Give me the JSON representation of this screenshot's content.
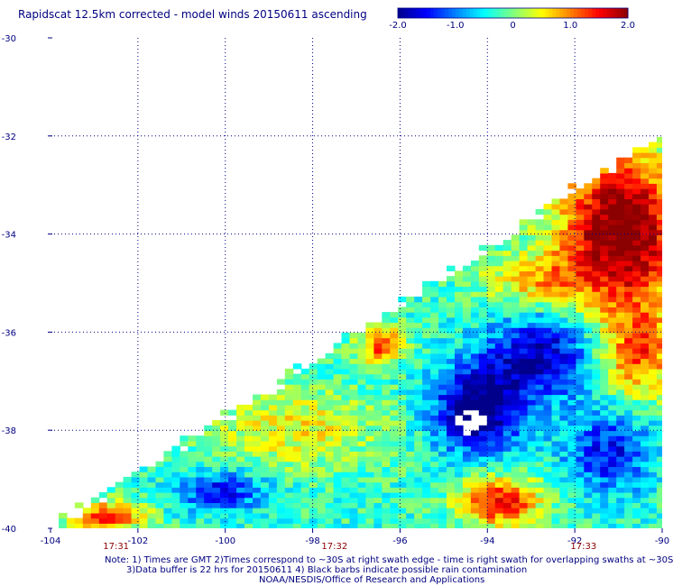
{
  "title": "Rapidscat 12.5km corrected - model winds 20150611 ascending",
  "colorbar": {
    "min": -2.0,
    "max": 2.0,
    "ticks": [
      "-2.0",
      "-1.0",
      "0",
      "1.0",
      "2.0"
    ],
    "colors": [
      "#00008b",
      "#0000ff",
      "#0080ff",
      "#00ffff",
      "#7fff7f",
      "#ffff00",
      "#ff8000",
      "#ff0000",
      "#8b0000"
    ]
  },
  "chart_data": {
    "type": "heatmap",
    "title": "Rapidscat 12.5km corrected - model winds 20150611 ascending",
    "x_range": [
      -104,
      -90
    ],
    "y_range": [
      -40,
      -30
    ],
    "x_ticks": [
      "-104",
      "-102",
      "-100",
      "-98",
      "-96",
      "-94",
      "-92",
      "-90"
    ],
    "y_ticks": [
      "-30",
      "-32",
      "-34",
      "-36",
      "-38",
      "-40"
    ],
    "time_labels": [
      {
        "x": -102.5,
        "label": "17:31"
      },
      {
        "x": -97.5,
        "label": "17:32"
      },
      {
        "x": -91.8,
        "label": "17:33"
      }
    ],
    "grid": true,
    "regions": [
      {
        "name": "dark red / red (positive)",
        "lon": [
          -92.5,
          -90
        ],
        "lat": [
          -37,
          -32
        ]
      },
      {
        "name": "blue (negative)",
        "lon": [
          -95.5,
          -91
        ],
        "lat": [
          -39.5,
          -35.5
        ]
      },
      {
        "name": "orange / red (positive)",
        "lon": [
          -95,
          -92.5
        ],
        "lat": [
          -40,
          -38.8
        ]
      },
      {
        "name": "cyan / green (near zero)",
        "lon": [
          -104,
          -96
        ],
        "lat": [
          -40,
          -36
        ]
      }
    ]
  },
  "notes": [
    "Note: 1) Times are GMT 2)Times correspond to ~30S at right swath edge - time is right swath for overlapping swaths at ~30S",
    "3)Data buffer is 22 hrs for 20150611 4) Black barbs indicate possible rain contamination",
    "NOAA/NESDIS/Office of Research and Applications"
  ]
}
